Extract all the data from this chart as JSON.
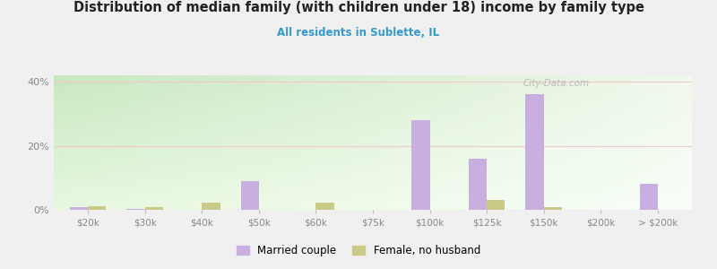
{
  "title": "Distribution of median family (with children under 18) income by family type",
  "subtitle": "All residents in Sublette, IL",
  "categories": [
    "$20k",
    "$30k",
    "$40k",
    "$50k",
    "$60k",
    "$75k",
    "$100k",
    "$125k",
    "$150k",
    "$200k",
    "> $200k"
  ],
  "married_couple": [
    0.8,
    0.4,
    0.0,
    9.0,
    0.0,
    0.0,
    28.0,
    16.0,
    36.0,
    0.0,
    8.0
  ],
  "female_no_husband": [
    1.2,
    0.8,
    2.2,
    0.0,
    2.2,
    0.0,
    0.0,
    3.0,
    0.8,
    0.0,
    0.0
  ],
  "married_color": "#c9aee0",
  "female_color": "#caca88",
  "title_color": "#222222",
  "subtitle_color": "#3399cc",
  "axis_color": "#888888",
  "grid_color": "#f2c8c8",
  "ylim": [
    0,
    42
  ],
  "yticks": [
    0,
    20,
    40
  ],
  "ytick_labels": [
    "0%",
    "20%",
    "40%"
  ],
  "bar_width": 0.32,
  "watermark": "City-Data.com",
  "outer_bg": "#f0f0f0",
  "plot_bg_left": "#c8e8c0",
  "plot_bg_right": "#f8fff4"
}
